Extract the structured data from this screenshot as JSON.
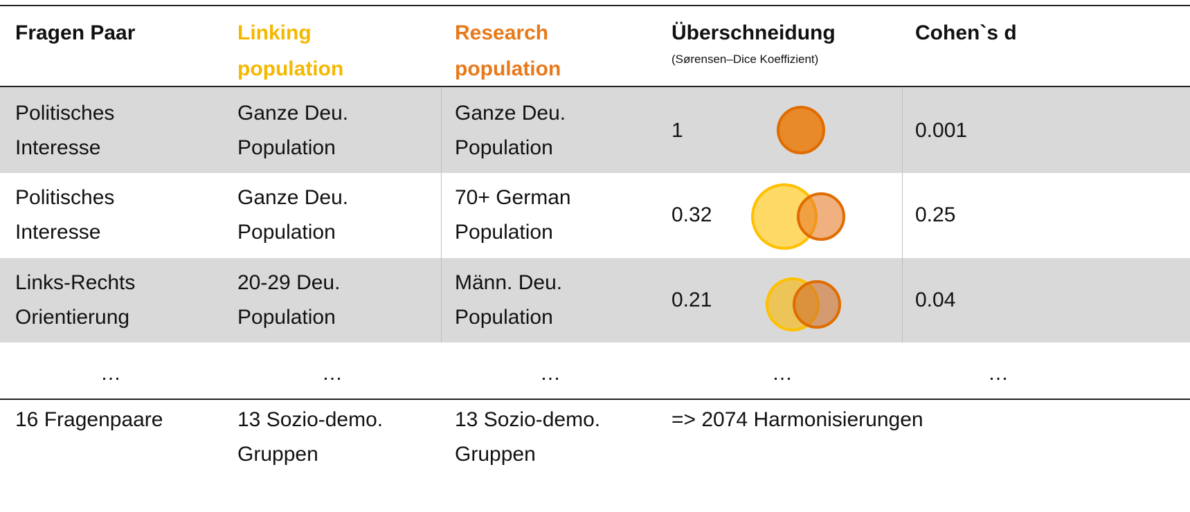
{
  "header": {
    "columns": [
      {
        "title": "Fragen Paar"
      },
      {
        "title": "Linking\npopulation"
      },
      {
        "title": "Research\npopulation"
      },
      {
        "title": "Überschneidung",
        "subtitle": "(Sørensen–Dice Koeffizient)"
      },
      {
        "title": "Cohen`s d"
      }
    ]
  },
  "table": {
    "rows": [
      [
        "Politisches\nInteresse",
        "Ganze Deu.\nPopulation",
        "Ganze Deu.\nPopulation",
        "1",
        "0.001"
      ],
      [
        "Politisches\nInteresse",
        "Ganze Deu.\nPopulation",
        "70+ German\nPopulation",
        "0.32",
        "0.25"
      ],
      [
        "Links-Rechts\nOrientierung",
        "20-29 Deu.\nPopulation",
        "Männ. Deu.\nPopulation",
        "0.21",
        "0.04"
      ]
    ],
    "ellipsis": [
      "…",
      "…",
      "…",
      "…",
      "…"
    ],
    "footer": [
      "16 Fragenpaare",
      "13 Sozio-demo.\nGruppen",
      "13 Sozio-demo.\nGruppen",
      "=> 2074 Harmonisierungen"
    ]
  }
}
